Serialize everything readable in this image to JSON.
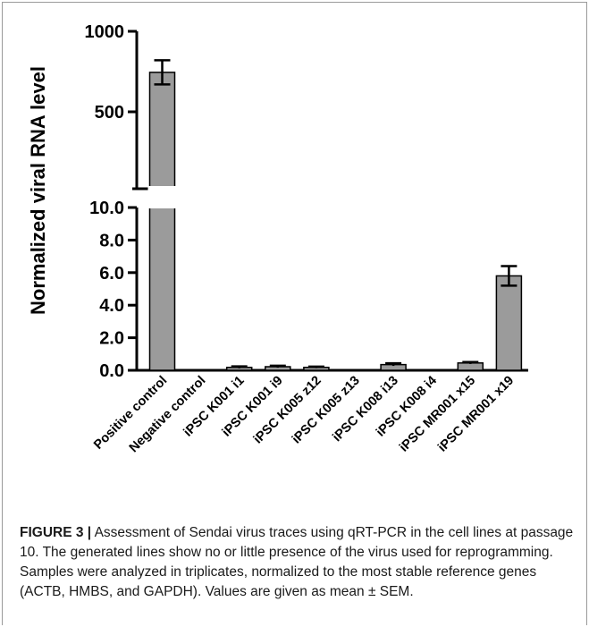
{
  "chart_data": {
    "type": "bar",
    "ylabel": "Normalized viral RNA level",
    "categories": [
      "Positive control",
      "Negative control",
      "iPSC K001 i1",
      "iPSC K001 i9",
      "iPSC K005 z12",
      "iPSC K005 z13",
      "iPSC K008 i13",
      "iPSC K008 i4",
      "iPSC MR001 x15",
      "iPSC MR001 x19"
    ],
    "values": [
      745,
      0,
      0.18,
      0.22,
      0.18,
      0,
      0.35,
      0,
      0.45,
      5.8
    ],
    "errors": [
      75,
      0,
      0.06,
      0.06,
      0.05,
      0,
      0.08,
      0,
      0.06,
      0.6
    ],
    "y_axis_broken": true,
    "lower_segment": {
      "ylim": [
        0,
        10
      ],
      "ticks": [
        "0.0",
        "2.0",
        "4.0",
        "6.0",
        "8.0",
        "10.0"
      ]
    },
    "upper_segment": {
      "ylim": [
        0,
        1000
      ],
      "ticks": [
        "500",
        "1000"
      ]
    },
    "bar_color": "#9b9b9b",
    "grid": false
  },
  "caption": {
    "label": "FIGURE 3 |",
    "text": " Assessment of Sendai virus traces using qRT-PCR in the cell lines at passage 10. The generated lines show no or little presence of the virus used for reprogramming. Samples were analyzed in triplicates, normalized to the most stable reference genes (ACTB, HMBS, and GAPDH). Values are given as mean ± SEM."
  }
}
